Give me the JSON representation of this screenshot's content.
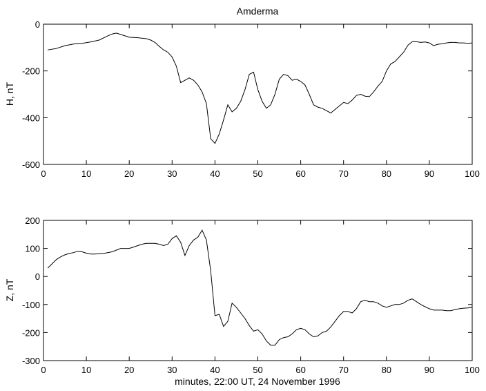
{
  "chart_data": [
    {
      "type": "line",
      "title": "Amderma",
      "xlabel": "",
      "ylabel": "H, nT",
      "xlim": [
        0,
        100
      ],
      "ylim": [
        -600,
        0
      ],
      "xticks": [
        0,
        10,
        20,
        30,
        40,
        50,
        60,
        70,
        80,
        90,
        100
      ],
      "yticks": [
        -600,
        -400,
        -200,
        0
      ],
      "grid": false,
      "series": [
        {
          "x": [
            1,
            3,
            5,
            7,
            9,
            11,
            13,
            15,
            16,
            17,
            18,
            19,
            20,
            22,
            24,
            25,
            26,
            27,
            28,
            29,
            30,
            31,
            32,
            33,
            34,
            35,
            36,
            37,
            38,
            39,
            40,
            41,
            42,
            43,
            44,
            45,
            46,
            47,
            48,
            49,
            50,
            51,
            52,
            53,
            54,
            55,
            56,
            57,
            58,
            59,
            60,
            61,
            62,
            63,
            64,
            65,
            66,
            67,
            68,
            69,
            70,
            71,
            72,
            73,
            74,
            75,
            76,
            77,
            78,
            79,
            80,
            81,
            82,
            83,
            84,
            85,
            86,
            87,
            88,
            89,
            90,
            91,
            92,
            93,
            94,
            95,
            96,
            97,
            98,
            99,
            100
          ],
          "y": [
            -110,
            -104,
            -92,
            -85,
            -82,
            -76,
            -68,
            -50,
            -42,
            -38,
            -44,
            -50,
            -56,
            -58,
            -62,
            -68,
            -78,
            -95,
            -110,
            -120,
            -140,
            -180,
            -250,
            -240,
            -230,
            -240,
            -260,
            -290,
            -340,
            -490,
            -510,
            -470,
            -410,
            -345,
            -375,
            -360,
            -330,
            -280,
            -215,
            -205,
            -280,
            -330,
            -360,
            -345,
            -300,
            -235,
            -215,
            -220,
            -240,
            -235,
            -245,
            -260,
            -300,
            -345,
            -355,
            -360,
            -370,
            -380,
            -365,
            -350,
            -335,
            -340,
            -325,
            -305,
            -300,
            -308,
            -310,
            -290,
            -265,
            -245,
            -200,
            -170,
            -160,
            -140,
            -120,
            -90,
            -75,
            -75,
            -78,
            -76,
            -80,
            -92,
            -86,
            -84,
            -80,
            -78,
            -78,
            -80,
            -80,
            -82,
            -80
          ]
        }
      ]
    },
    {
      "type": "line",
      "title": "",
      "xlabel": "minutes, 22:00 UT, 24 November 1996",
      "ylabel": "Z, nT",
      "xlim": [
        0,
        100
      ],
      "ylim": [
        -300,
        200
      ],
      "xticks": [
        0,
        10,
        20,
        30,
        40,
        50,
        60,
        70,
        80,
        90,
        100
      ],
      "yticks": [
        -300,
        -200,
        -100,
        0,
        100,
        200
      ],
      "grid": false,
      "series": [
        {
          "x": [
            1,
            2,
            3,
            4,
            5,
            6,
            7,
            8,
            9,
            10,
            11,
            12,
            14,
            16,
            18,
            20,
            21,
            22,
            23,
            24,
            25,
            26,
            27,
            28,
            29,
            30,
            31,
            32,
            33,
            34,
            35,
            36,
            37,
            38,
            39,
            40,
            41,
            42,
            43,
            44,
            45,
            46,
            47,
            48,
            49,
            50,
            51,
            52,
            53,
            54,
            55,
            56,
            57,
            58,
            59,
            60,
            61,
            62,
            63,
            64,
            65,
            66,
            67,
            68,
            69,
            70,
            71,
            72,
            73,
            74,
            75,
            76,
            77,
            78,
            79,
            80,
            81,
            82,
            83,
            84,
            85,
            86,
            87,
            88,
            89,
            90,
            91,
            92,
            93,
            94,
            95,
            96,
            97,
            98,
            99,
            100
          ],
          "y": [
            30,
            45,
            60,
            70,
            77,
            82,
            85,
            90,
            88,
            83,
            80,
            80,
            82,
            88,
            100,
            100,
            105,
            110,
            115,
            118,
            118,
            118,
            115,
            110,
            115,
            135,
            145,
            122,
            75,
            110,
            130,
            140,
            165,
            130,
            20,
            -140,
            -135,
            -178,
            -160,
            -95,
            -110,
            -130,
            -150,
            -175,
            -195,
            -190,
            -205,
            -230,
            -245,
            -245,
            -225,
            -218,
            -215,
            -205,
            -190,
            -185,
            -190,
            -205,
            -215,
            -212,
            -200,
            -195,
            -180,
            -160,
            -140,
            -125,
            -125,
            -130,
            -115,
            -90,
            -85,
            -90,
            -90,
            -95,
            -105,
            -110,
            -105,
            -100,
            -100,
            -95,
            -85,
            -80,
            -90,
            -100,
            -108,
            -115,
            -120,
            -120,
            -120,
            -122,
            -122,
            -118,
            -115,
            -113,
            -112,
            -110
          ]
        }
      ]
    }
  ]
}
